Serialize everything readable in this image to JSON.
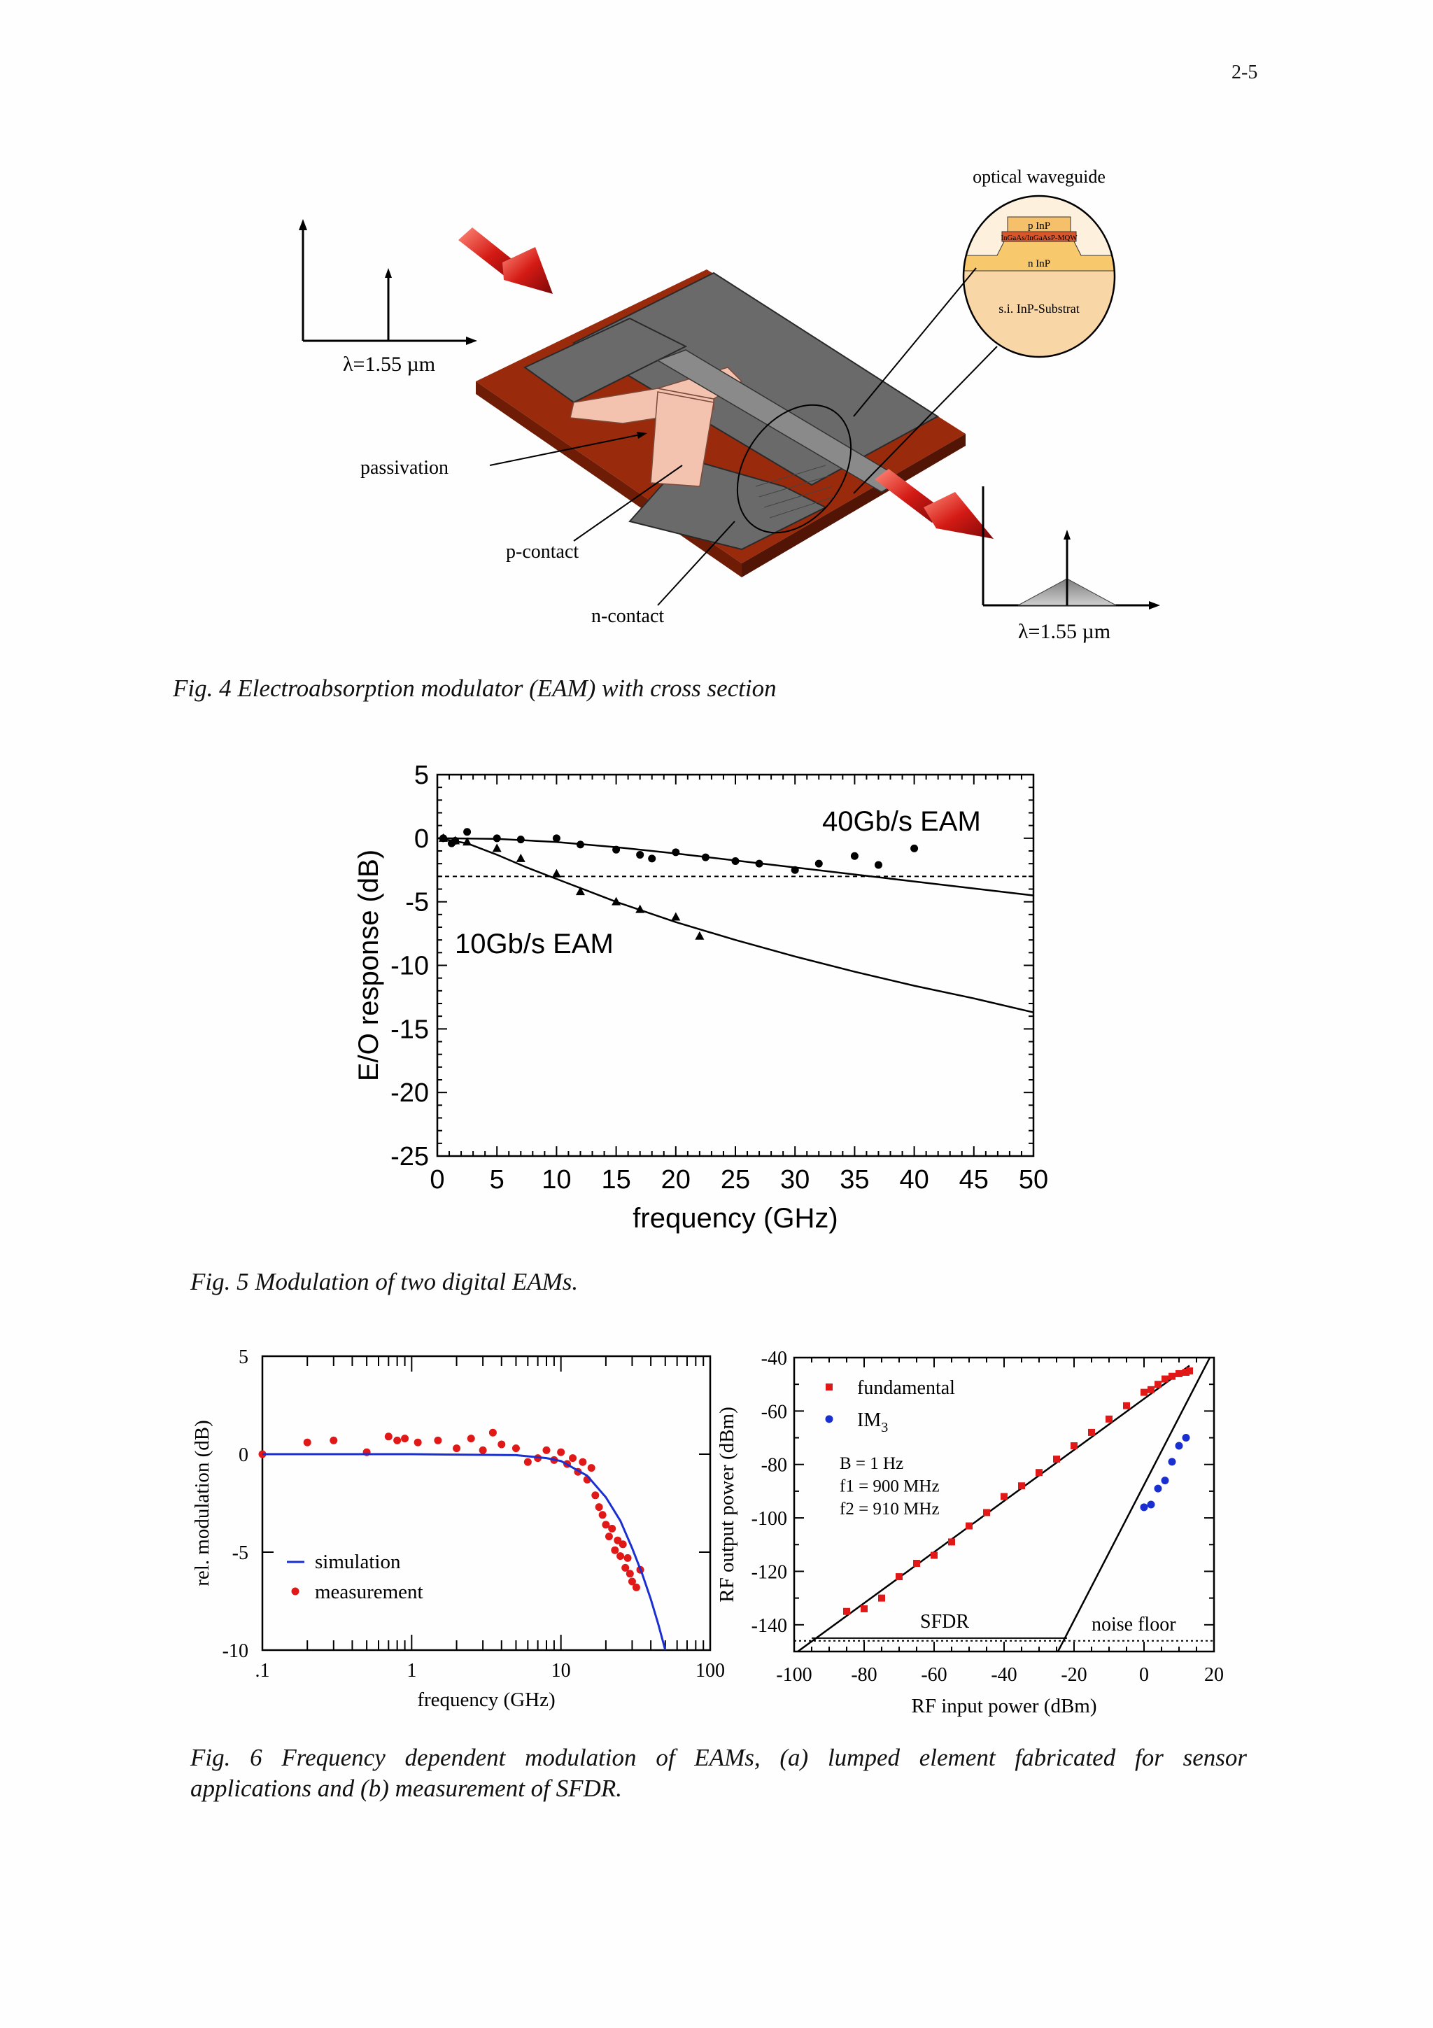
{
  "page_number": "2-5",
  "fig4": {
    "caption": "Fig. 4 Electroabsorption modulator (EAM) with cross section",
    "lambda_in": "λ=1.55 µm",
    "lambda_out": "λ=1.55 µm",
    "labels": {
      "optical_waveguide": "optical waveguide",
      "passivation": "passivation",
      "p_contact": "p-contact",
      "n_contact": "n-contact"
    },
    "layers": [
      "p InP",
      "InGaAs/InGaAsP-MQW",
      "n InP",
      "s.i. InP-Substrat"
    ],
    "colors": {
      "substrate": "#9a2a0c",
      "contact": "#6a6a6a",
      "passivation": "#f4c3b0",
      "arrow": "#d42020",
      "layer_p": "#f6c06a",
      "layer_mqw": "#d9552a",
      "layer_n": "#f7c86c",
      "layer_si": "#f8d6a6"
    }
  },
  "fig5": {
    "caption": "Fig. 5 Modulation of two digital EAMs.",
    "chart_data": {
      "type": "line",
      "xlabel": "frequency (GHz)",
      "ylabel": "E/O response (dB)",
      "xlim": [
        0,
        50
      ],
      "ylim": [
        -25,
        5
      ],
      "xticks": [
        "0",
        "5",
        "10",
        "15",
        "20",
        "25",
        "30",
        "35",
        "40",
        "45",
        "50"
      ],
      "yticks": [
        "5",
        "0",
        "-5",
        "-10",
        "-15",
        "-20",
        "-25"
      ],
      "reference_line_y": -3,
      "series": [
        {
          "name": "40Gb/s EAM",
          "marker": "circle",
          "points": [
            [
              0.5,
              0
            ],
            [
              1.2,
              -0.4
            ],
            [
              1.5,
              -0.2
            ],
            [
              2.5,
              0.5
            ],
            [
              5,
              0
            ],
            [
              7,
              -0.1
            ],
            [
              10,
              0
            ],
            [
              12,
              -0.5
            ],
            [
              15,
              -0.9
            ],
            [
              17,
              -1.3
            ],
            [
              18,
              -1.6
            ],
            [
              20,
              -1.1
            ],
            [
              22.5,
              -1.5
            ],
            [
              25,
              -1.8
            ],
            [
              27,
              -2.0
            ],
            [
              30,
              -2.5
            ],
            [
              32,
              -2.0
            ],
            [
              35,
              -1.4
            ],
            [
              37,
              -2.1
            ],
            [
              40,
              -0.8
            ]
          ],
          "fit": [
            [
              0,
              0
            ],
            [
              5,
              -0.05
            ],
            [
              10,
              -0.3
            ],
            [
              15,
              -0.7
            ],
            [
              20,
              -1.2
            ],
            [
              25,
              -1.75
            ],
            [
              30,
              -2.3
            ],
            [
              35,
              -2.85
            ],
            [
              40,
              -3.4
            ],
            [
              45,
              -3.95
            ],
            [
              50,
              -4.5
            ]
          ]
        },
        {
          "name": "10Gb/s EAM",
          "marker": "triangle",
          "points": [
            [
              0.5,
              0
            ],
            [
              1.5,
              -0.2
            ],
            [
              2.5,
              -0.3
            ],
            [
              5,
              -0.8
            ],
            [
              7,
              -1.6
            ],
            [
              10,
              -2.8
            ],
            [
              12,
              -4.2
            ],
            [
              15,
              -5.0
            ],
            [
              17,
              -5.6
            ],
            [
              20,
              -6.2
            ],
            [
              22,
              -7.7
            ]
          ],
          "fit": [
            [
              0,
              0
            ],
            [
              2.5,
              -0.4
            ],
            [
              5,
              -1.3
            ],
            [
              7.5,
              -2.3
            ],
            [
              10,
              -3.2
            ],
            [
              12.5,
              -4.1
            ],
            [
              15,
              -5
            ],
            [
              20,
              -6.6
            ],
            [
              25,
              -8
            ],
            [
              30,
              -9.3
            ],
            [
              35,
              -10.5
            ],
            [
              40,
              -11.6
            ],
            [
              45,
              -12.6
            ],
            [
              50,
              -13.7
            ]
          ]
        }
      ]
    }
  },
  "fig6a": {
    "chart_data": {
      "type": "scatter",
      "xlabel": "frequency (GHz)",
      "ylabel": "rel. modulation (dB)",
      "xscale": "log",
      "xlim": [
        0.1,
        100
      ],
      "ylim": [
        -10,
        5
      ],
      "xticks": [
        ".1",
        "1",
        "10",
        "100"
      ],
      "yticks": [
        "5",
        "0",
        "-5",
        "-10"
      ],
      "legend": [
        "simulation",
        "measurement"
      ],
      "colors": {
        "simulation": "#1a2fd0",
        "measurement": "#e01818"
      },
      "simulation": [
        [
          0.1,
          0
        ],
        [
          1,
          0
        ],
        [
          5,
          -0.05
        ],
        [
          8,
          -0.2
        ],
        [
          10,
          -0.35
        ],
        [
          15,
          -1.1
        ],
        [
          20,
          -2.2
        ],
        [
          25,
          -3.4
        ],
        [
          30,
          -4.8
        ],
        [
          35,
          -6.1
        ],
        [
          40,
          -7.4
        ],
        [
          45,
          -8.7
        ],
        [
          50,
          -10
        ]
      ],
      "measurement": [
        [
          0.1,
          0
        ],
        [
          0.2,
          0.6
        ],
        [
          0.3,
          0.7
        ],
        [
          0.5,
          0.1
        ],
        [
          0.7,
          0.9
        ],
        [
          0.8,
          0.7
        ],
        [
          0.9,
          0.8
        ],
        [
          1.1,
          0.6
        ],
        [
          1.5,
          0.7
        ],
        [
          2,
          0.3
        ],
        [
          2.5,
          0.8
        ],
        [
          3,
          0.2
        ],
        [
          3.5,
          1.1
        ],
        [
          4,
          0.5
        ],
        [
          5,
          0.3
        ],
        [
          6,
          -0.4
        ],
        [
          7,
          -0.2
        ],
        [
          8,
          0.2
        ],
        [
          9,
          -0.3
        ],
        [
          10,
          0.1
        ],
        [
          11,
          -0.5
        ],
        [
          12,
          -0.2
        ],
        [
          13,
          -0.9
        ],
        [
          14,
          -0.4
        ],
        [
          15,
          -1.3
        ],
        [
          16,
          -0.7
        ],
        [
          17,
          -2.1
        ],
        [
          18,
          -2.7
        ],
        [
          19,
          -3.1
        ],
        [
          20,
          -3.6
        ],
        [
          21,
          -4.2
        ],
        [
          22,
          -3.8
        ],
        [
          23,
          -4.9
        ],
        [
          24,
          -4.4
        ],
        [
          25,
          -5.2
        ],
        [
          26,
          -4.6
        ],
        [
          27,
          -5.8
        ],
        [
          28,
          -5.3
        ],
        [
          29,
          -6.1
        ],
        [
          30,
          -6.5
        ],
        [
          32,
          -6.8
        ],
        [
          34,
          -5.9
        ]
      ]
    }
  },
  "fig6b": {
    "chart_data": {
      "type": "scatter",
      "xlabel": "RF input power (dBm)",
      "ylabel": "RF output power  (dBm)",
      "xlim": [
        -100,
        20
      ],
      "ylim": [
        -150,
        -40
      ],
      "xticks": [
        "-100",
        "-80",
        "-60",
        "-40",
        "-20",
        "0",
        "20"
      ],
      "yticks": [
        "-40",
        "-60",
        "-80",
        "-100",
        "-120",
        "-140"
      ],
      "legend": [
        "fundamental",
        "IM3"
      ],
      "annotations": [
        "B = 1 Hz",
        "f1 = 900 MHz",
        "f2 = 910 MHz",
        "SFDR",
        "noise floor"
      ],
      "colors": {
        "fundamental": "#e01818",
        "IM3": "#1a2fd0"
      },
      "noise_floor": -146,
      "fundamental": [
        [
          -85,
          -135
        ],
        [
          -80,
          -134
        ],
        [
          -75,
          -130
        ],
        [
          -70,
          -122
        ],
        [
          -65,
          -117
        ],
        [
          -60,
          -114
        ],
        [
          -55,
          -109
        ],
        [
          -50,
          -103
        ],
        [
          -45,
          -98
        ],
        [
          -40,
          -92
        ],
        [
          -35,
          -88
        ],
        [
          -30,
          -83
        ],
        [
          -25,
          -78
        ],
        [
          -20,
          -73
        ],
        [
          -15,
          -68
        ],
        [
          -10,
          -63
        ],
        [
          -5,
          -58
        ],
        [
          0,
          -53
        ],
        [
          2,
          -52
        ],
        [
          4,
          -50
        ],
        [
          6,
          -48
        ],
        [
          8,
          -47
        ],
        [
          10,
          -46
        ],
        [
          12,
          -45.5
        ],
        [
          13,
          -45
        ]
      ],
      "IM3": [
        [
          0,
          -96
        ],
        [
          2,
          -95
        ],
        [
          4,
          -89
        ],
        [
          6,
          -86
        ],
        [
          8,
          -79
        ],
        [
          10,
          -73
        ],
        [
          12,
          -70
        ]
      ],
      "fundamental_fit": [
        [
          -100,
          -151
        ],
        [
          13,
          -43
        ]
      ],
      "IM3_fit": [
        [
          -25,
          -151
        ],
        [
          20,
          -37
        ]
      ]
    }
  },
  "fig6": {
    "caption_line1": "Fig. 6 Frequency dependent modulation of  EAMs, (a) lumped element fabricated for sensor",
    "caption_line2": "applications and (b) measurement of SFDR."
  }
}
